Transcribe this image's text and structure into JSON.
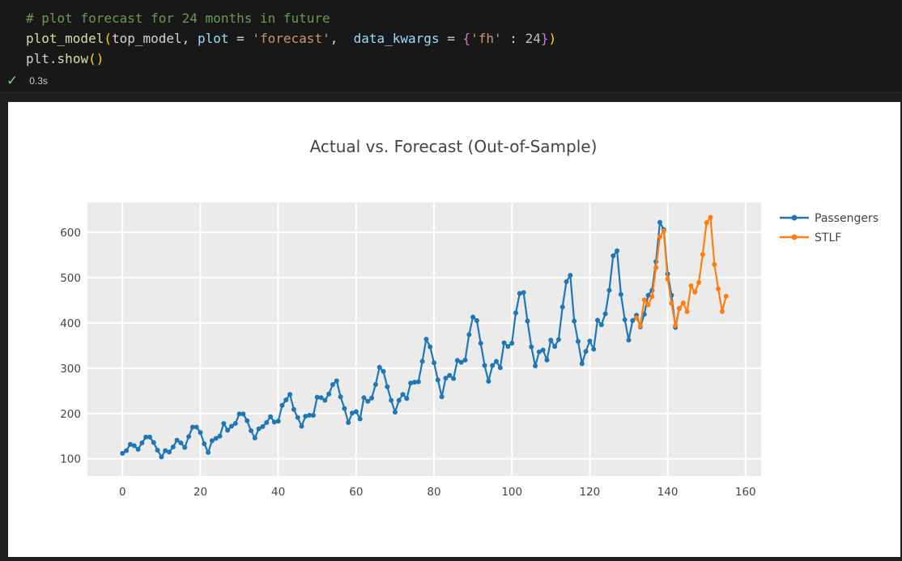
{
  "code": {
    "comment": "# plot forecast for 24 months in future",
    "fn_call": "plot_model",
    "arg_model": "top_model",
    "arg_plot_name": "plot",
    "arg_plot_value": "'forecast'",
    "arg_kwargs_name": "data_kwargs",
    "dict_key": "'fh'",
    "dict_value": "24",
    "line3_obj": "plt",
    "line3_fn": "show"
  },
  "status": {
    "icon": "check-icon",
    "time": "0.3s"
  },
  "colors": {
    "passengers": "#1f77b4",
    "stlf": "#ff7f0e",
    "plot_bg": "#ebebeb",
    "grid": "#ffffff"
  },
  "chart_data": {
    "type": "line",
    "title": "Actual vs. Forecast (Out-of-Sample)",
    "xlim": [
      -9,
      164
    ],
    "ylim": [
      62,
      666
    ],
    "xticks": [
      0,
      20,
      40,
      60,
      80,
      100,
      120,
      140,
      160
    ],
    "yticks": [
      100,
      200,
      300,
      400,
      500,
      600
    ],
    "legend_position": "right",
    "grid": true,
    "series": [
      {
        "name": "Passengers",
        "color": "#1f77b4",
        "x_start": 0,
        "values": [
          112,
          118,
          132,
          129,
          121,
          135,
          148,
          148,
          136,
          119,
          104,
          118,
          115,
          126,
          141,
          135,
          125,
          149,
          170,
          170,
          158,
          133,
          114,
          140,
          145,
          150,
          178,
          163,
          172,
          178,
          199,
          199,
          184,
          162,
          146,
          166,
          171,
          180,
          193,
          181,
          183,
          218,
          230,
          242,
          209,
          191,
          172,
          194,
          196,
          196,
          236,
          235,
          229,
          243,
          264,
          272,
          237,
          211,
          180,
          201,
          204,
          188,
          235,
          227,
          234,
          264,
          302,
          293,
          259,
          229,
          203,
          229,
          242,
          233,
          267,
          269,
          270,
          315,
          364,
          347,
          312,
          274,
          237,
          278,
          284,
          277,
          317,
          313,
          318,
          374,
          413,
          405,
          355,
          306,
          271,
          306,
          315,
          301,
          356,
          348,
          355,
          422,
          465,
          467,
          404,
          347,
          305,
          336,
          340,
          318,
          362,
          348,
          363,
          435,
          491,
          505,
          404,
          359,
          310,
          337,
          360,
          342,
          406,
          396,
          420,
          472,
          548,
          559,
          463,
          407,
          362,
          405,
          417,
          391,
          419,
          461,
          472,
          535,
          622,
          606,
          508,
          461,
          390,
          432
        ]
      },
      {
        "name": "STLF",
        "color": "#ff7f0e",
        "x_start": 132,
        "values": [
          411,
          393,
          451,
          440,
          458,
          522,
          590,
          603,
          497,
          443,
          394,
          432,
          444,
          425,
          482,
          468,
          489,
          551,
          621,
          633,
          529,
          475,
          425,
          459
        ]
      }
    ]
  }
}
